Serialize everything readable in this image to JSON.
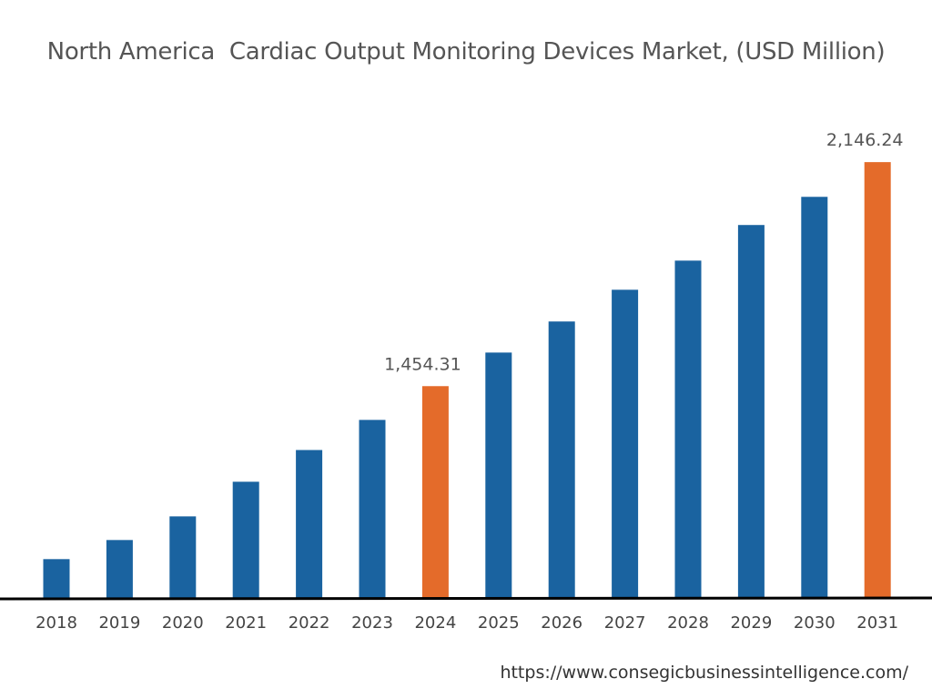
{
  "chart_data": {
    "type": "bar",
    "title": "North America  Cardiac Output Monitoring Devices Market, (USD Million)",
    "xlabel": "",
    "ylabel": "",
    "categories": [
      "2018",
      "2019",
      "2020",
      "2021",
      "2022",
      "2023",
      "2024",
      "2025",
      "2026",
      "2027",
      "2028",
      "2029",
      "2030",
      "2031"
    ],
    "values": [
      920,
      979,
      1052,
      1159,
      1257,
      1350,
      1454.31,
      1558,
      1654,
      1752,
      1842,
      1952,
      2039,
      2146.24
    ],
    "data_labels": {
      "2024": "1,454.31",
      "2031": "2,146.24"
    },
    "ylim": [
      800,
      2200
    ],
    "grid": false,
    "colors": {
      "default": "#1a63a0",
      "highlight": "#e46b2a"
    },
    "highlighted": [
      "2024",
      "2031"
    ]
  },
  "source": "https://www.consegicbusinessintelligence.com/"
}
